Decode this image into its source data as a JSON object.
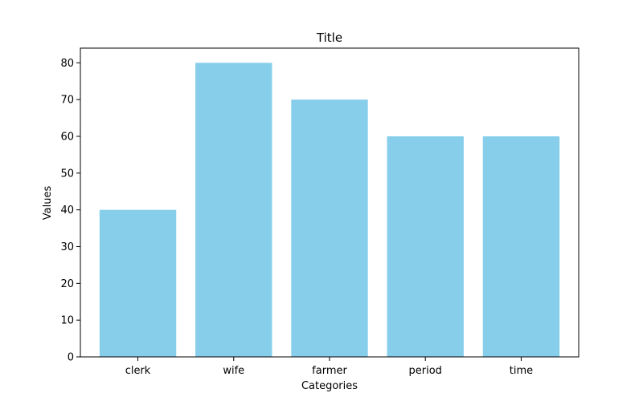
{
  "chart_data": {
    "type": "bar",
    "title": "Title",
    "xlabel": "Categories",
    "ylabel": "Values",
    "categories": [
      "clerk",
      "wife",
      "farmer",
      "period",
      "time"
    ],
    "values": [
      40,
      80,
      70,
      60,
      60
    ],
    "ylim": [
      0,
      84
    ],
    "yticks": [
      0,
      10,
      20,
      30,
      40,
      50,
      60,
      70,
      80
    ],
    "bar_color": "#87CEEB",
    "grid": false,
    "legend": "none"
  }
}
